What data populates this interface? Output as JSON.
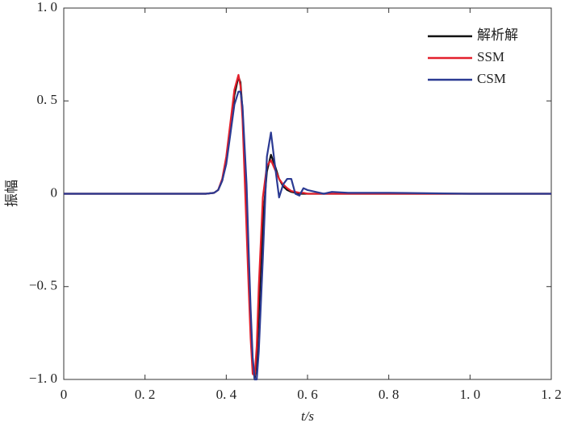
{
  "chart_data": {
    "type": "line",
    "xlabel": "t/s",
    "ylabel": "振幅",
    "x": [
      0,
      0.1,
      0.2,
      0.3,
      0.35,
      0.37,
      0.38,
      0.39,
      0.4,
      0.41,
      0.42,
      0.43,
      0.435,
      0.44,
      0.45,
      0.455,
      0.46,
      0.465,
      0.47,
      0.475,
      0.48,
      0.49,
      0.5,
      0.51,
      0.52,
      0.53,
      0.54,
      0.55,
      0.56,
      0.57,
      0.58,
      0.59,
      0.6,
      0.62,
      0.64,
      0.66,
      0.7,
      0.8,
      1.0,
      1.2
    ],
    "series": [
      {
        "name": "解析解",
        "color": "#111111",
        "values": [
          0,
          0,
          0,
          0,
          0,
          0.005,
          0.02,
          0.07,
          0.18,
          0.35,
          0.53,
          0.63,
          0.6,
          0.45,
          -0.1,
          -0.4,
          -0.7,
          -0.92,
          -1.0,
          -0.9,
          -0.65,
          -0.15,
          0.12,
          0.21,
          0.15,
          0.08,
          0.04,
          0.02,
          0.01,
          0.005,
          0,
          0,
          0,
          0,
          0,
          0,
          0,
          0,
          0,
          0
        ]
      },
      {
        "name": "SSM",
        "color": "#e3202c",
        "values": [
          0,
          0,
          0,
          0,
          0,
          0.005,
          0.02,
          0.08,
          0.2,
          0.38,
          0.56,
          0.64,
          0.58,
          0.4,
          -0.2,
          -0.5,
          -0.78,
          -0.97,
          -0.98,
          -0.82,
          -0.5,
          -0.02,
          0.15,
          0.18,
          0.13,
          0.08,
          0.05,
          0.03,
          0.015,
          0.01,
          0.005,
          0.005,
          0,
          0,
          0,
          0,
          0,
          0,
          0,
          0
        ]
      },
      {
        "name": "CSM",
        "color": "#2b3a93",
        "values": [
          0,
          0,
          0,
          0,
          0,
          0.005,
          0.02,
          0.07,
          0.16,
          0.32,
          0.48,
          0.55,
          0.55,
          0.47,
          0.05,
          -0.3,
          -0.62,
          -0.88,
          -1.0,
          -1.0,
          -0.85,
          -0.35,
          0.2,
          0.33,
          0.15,
          -0.02,
          0.05,
          0.08,
          0.08,
          0.0,
          -0.01,
          0.03,
          0.02,
          0.01,
          0.0,
          0.01,
          0.005,
          0.005,
          0,
          0
        ]
      }
    ],
    "xlim": [
      0,
      1.2
    ],
    "xticks": [
      0,
      {
        "value": 0.2,
        "label": "0. 2"
      },
      {
        "value": 0.4,
        "label": "0. 4"
      },
      {
        "value": 0.6,
        "label": "0. 6"
      },
      {
        "value": 0.8,
        "label": "0. 8"
      },
      {
        "value": 1.0,
        "label": "1. 0"
      },
      {
        "value": 1.2,
        "label": "1. 2"
      }
    ],
    "ylim": [
      -1,
      1
    ],
    "yticks": [
      {
        "value": -1,
        "label": "−1. 0"
      },
      {
        "value": -0.5,
        "label": "−0. 5"
      },
      0,
      {
        "value": 0.5,
        "label": "0. 5"
      },
      {
        "value": 1,
        "label": "1. 0"
      }
    ],
    "legend": "upper right",
    "grid": false
  }
}
